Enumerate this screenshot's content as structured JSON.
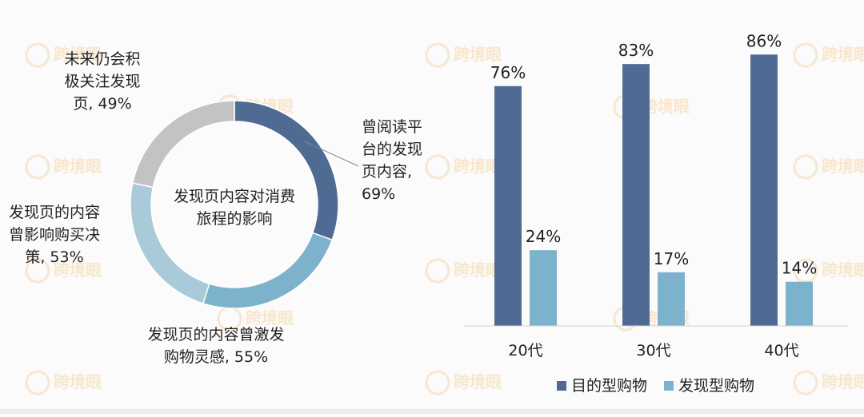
{
  "chart_data": [
    {
      "type": "pie",
      "center_label": [
        "发现页内容对消费",
        "旅程的影响"
      ],
      "slices": [
        {
          "label": "曾阅读平台的发现页内容, 69%",
          "value": 69,
          "color": "#506b93"
        },
        {
          "label": "发现页的内容曾激发购物灵感, 55%",
          "value": 55,
          "color": "#7db2cc"
        },
        {
          "label": "发现页的内容曾影响购买决策, 53%",
          "value": 53,
          "color": "#a9cad8"
        },
        {
          "label": "未来仍会积极关注发现页, 49%",
          "value": 49,
          "color": "#c3c3c3"
        }
      ],
      "slice_labels": [
        [
          "曾阅读平",
          "台的发现",
          "页内容,",
          "69%"
        ],
        [
          "发现页的内容曾激发",
          "购物灵感, 55%"
        ],
        [
          "发现页的内容",
          "曾影响购买决",
          "策, 53%"
        ],
        [
          "未来仍会积",
          "极关注发现",
          "页, 49%"
        ]
      ]
    },
    {
      "type": "bar",
      "categories": [
        "20代",
        "30代",
        "40代"
      ],
      "series": [
        {
          "name": "目的型购物",
          "values": [
            76,
            83,
            86
          ],
          "color": "#506b93"
        },
        {
          "name": "发现型购物",
          "values": [
            24,
            17,
            14
          ],
          "color": "#7db2cc"
        }
      ],
      "data_labels": [
        [
          "76%",
          "83%",
          "86%"
        ],
        [
          "24%",
          "17%",
          "14%"
        ]
      ],
      "ylim": [
        0,
        100
      ],
      "legend_position": "bottom",
      "grid": false
    }
  ],
  "watermark": "跨境眼"
}
